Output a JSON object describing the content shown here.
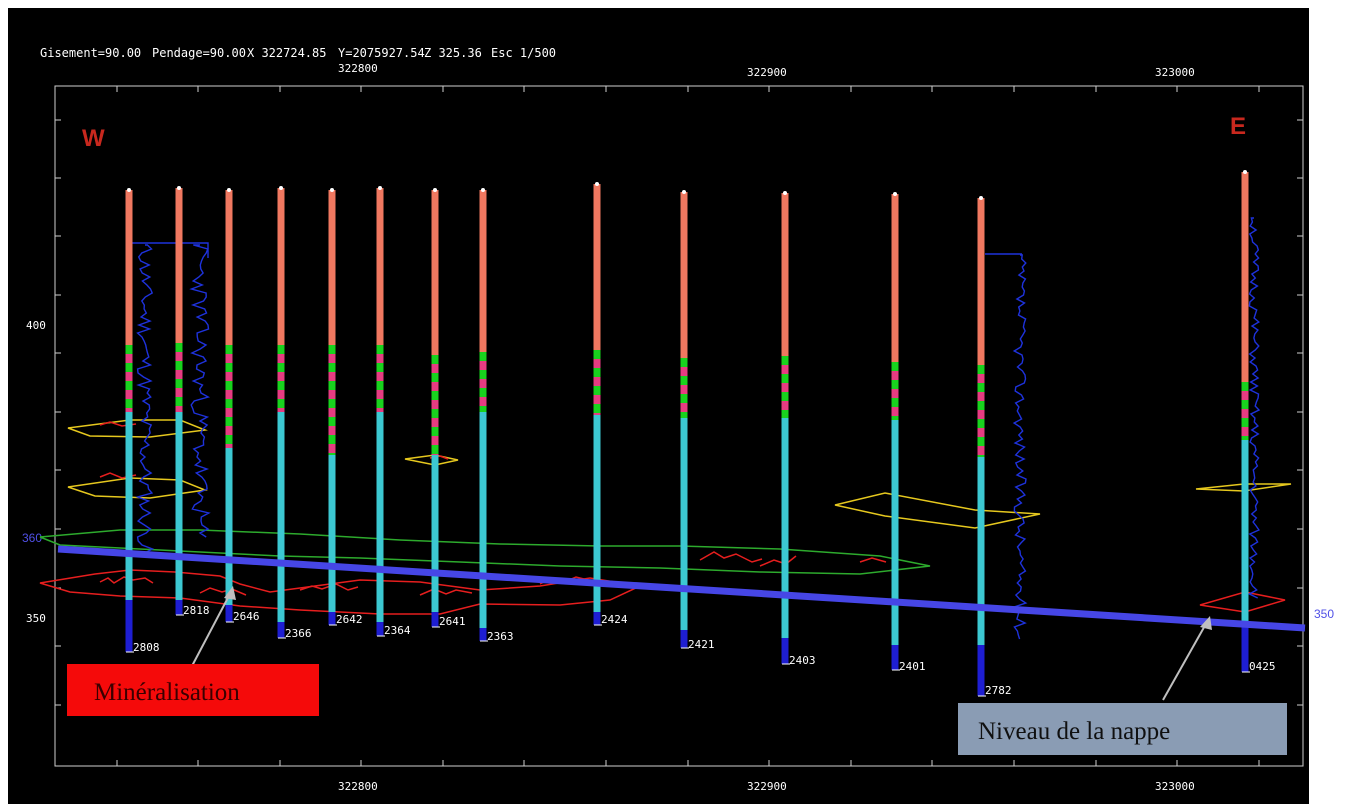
{
  "header": {
    "gisement": "Gisement=90.00",
    "pendage": "Pendage=90.00",
    "x": "X 322724.85",
    "y": "Y=2075927.54",
    "z": "Z 325.36",
    "esc": "Esc 1/500"
  },
  "axes": {
    "top_ticks": [
      {
        "label": "322800"
      },
      {
        "label": "322900"
      },
      {
        "label": "323000"
      }
    ],
    "bottom_ticks": [
      {
        "label": "322800"
      },
      {
        "label": "322900"
      },
      {
        "label": "323000"
      }
    ],
    "left_ticks": [
      {
        "label": "400"
      },
      {
        "label": "350"
      }
    ],
    "left_blue_label": "360",
    "right_blue_label": "350"
  },
  "directions": {
    "west": "W",
    "east": "E",
    "color": "#c8281e"
  },
  "colors": {
    "background": "#000000",
    "collar": "#f07860",
    "mixed_green": "#19d21e",
    "mixed_pink": "#e63c82",
    "lower": "#3cc8d2",
    "bottom": "#1e1ed2",
    "mineralisation": "#e61e1e",
    "gold_envelope": "#e6c81e",
    "green_envelope": "#2daa2d",
    "water_table": "#4646e6",
    "log_curve": "#1e32dc",
    "callout_red": "#f50a0a",
    "callout_gray": "#8a9cb4"
  },
  "drillholes": [
    {
      "id": "2808"
    },
    {
      "id": "2818"
    },
    {
      "id": "2646"
    },
    {
      "id": "2366"
    },
    {
      "id": "2642"
    },
    {
      "id": "2364"
    },
    {
      "id": "2641"
    },
    {
      "id": "2363"
    },
    {
      "id": "2424"
    },
    {
      "id": "2421"
    },
    {
      "id": "2403"
    },
    {
      "id": "2401"
    },
    {
      "id": "2782"
    },
    {
      "id": "0425"
    }
  ],
  "callouts": {
    "mineralisation": "Minéralisation",
    "nappe": "Niveau de la nappe"
  }
}
